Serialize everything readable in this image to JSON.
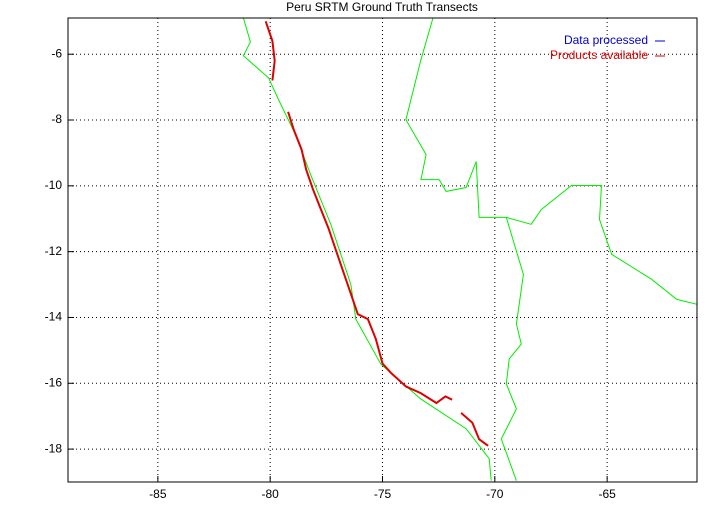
{
  "chart_data": {
    "type": "line",
    "title": "Peru SRTM Ground Truth Transects",
    "xlim": [
      -89,
      -61
    ],
    "ylim": [
      -19,
      -4.9
    ],
    "xticks": [
      -85,
      -80,
      -75,
      -70,
      -65
    ],
    "yticks": [
      -6,
      -8,
      -10,
      -12,
      -14,
      -16,
      -18
    ],
    "grid": true,
    "legend": "top-right",
    "series": [
      {
        "name": "Data processed",
        "color": "#0000cc",
        "x": [
          -78.4,
          -75.0
        ],
        "values": [
          -9.5,
          -15.4
        ]
      },
      {
        "name": "Products available",
        "color": "#e00000",
        "x": [
          -80.2,
          -79.9,
          -79.8,
          -79.9,
          null,
          -79.2,
          -78.95,
          -78.6,
          -78.4,
          -78.1,
          -77.75,
          -77.4,
          -77.1,
          -76.85,
          -76.5,
          -76.1,
          -75.65,
          -75.3,
          -75.0,
          -74.6,
          -73.95,
          -73.3,
          -72.6,
          -72.2,
          -71.9,
          null,
          -71.5,
          -71.0,
          -70.7,
          -70.3
        ],
        "values": [
          -5.0,
          -5.6,
          -6.2,
          -6.8,
          null,
          -7.75,
          -8.3,
          -8.9,
          -9.5,
          -10.1,
          -10.7,
          -11.3,
          -11.9,
          -12.4,
          -13.1,
          -13.9,
          -14.05,
          -14.65,
          -15.4,
          -15.7,
          -16.1,
          -16.3,
          -16.6,
          -16.4,
          -16.5,
          null,
          -16.9,
          -17.2,
          -17.7,
          -17.9
        ]
      }
    ],
    "outlines": [
      {
        "color": "#00ee00",
        "x": [
          -81.19,
          -80.88,
          -81.19,
          -80.07,
          -79.63,
          -78.87,
          -78.2,
          -77.3,
          -76.41,
          -76.19,
          -75.07,
          -73.29,
          -71.28,
          -70.25,
          -70.16
        ],
        "y": [
          -4.9,
          -5.63,
          -6.05,
          -6.72,
          -7.38,
          -8.45,
          -9.66,
          -11.17,
          -12.99,
          -14.05,
          -15.42,
          -16.48,
          -17.38,
          -18.29,
          -18.96
        ]
      },
      {
        "color": "#00ee00",
        "x": [
          -72.75,
          -73.29,
          -73.96,
          -73.06,
          -73.29,
          -72.48,
          -72.17,
          -71.28,
          -70.83,
          -70.7,
          -69.49,
          -68.73,
          -69.04,
          -68.82,
          -69.36,
          -69.49,
          -69.04,
          -69.71,
          -69.04
        ],
        "y": [
          -4.9,
          -6.17,
          -7.99,
          -9.05,
          -9.81,
          -9.81,
          -10.17,
          -10.05,
          -9.26,
          -10.96,
          -10.96,
          -12.69,
          -14.2,
          -14.81,
          -15.26,
          -16.02,
          -16.78,
          -17.69,
          -18.96
        ]
      },
      {
        "color": "#00ee00",
        "x": [
          -69.49,
          -68.38,
          -67.93,
          -66.59,
          -65.25,
          -65.34,
          -64.8,
          -63.02,
          -61.9,
          -61
        ],
        "y": [
          -10.96,
          -11.17,
          -10.72,
          -9.99,
          -9.99,
          -11.02,
          -12.08,
          -12.84,
          -13.45,
          -13.6
        ]
      }
    ]
  }
}
